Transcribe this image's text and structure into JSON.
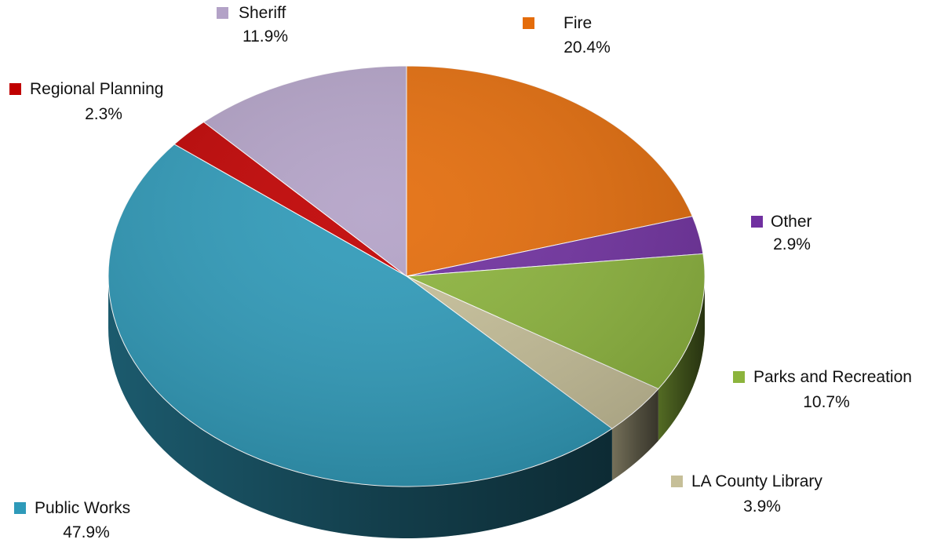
{
  "chart_data": {
    "type": "pie",
    "title": "",
    "slices": [
      {
        "label": "Fire",
        "value": 20.4,
        "display": "20.4%",
        "color": "#e46c0a"
      },
      {
        "label": "Other",
        "value": 2.9,
        "display": "2.9%",
        "color": "#7030a0"
      },
      {
        "label": "Parks and Recreation",
        "value": 10.7,
        "display": "10.7%",
        "color": "#8cb43c"
      },
      {
        "label": "LA County Library",
        "value": 3.9,
        "display": "3.9%",
        "color": "#c6bf98"
      },
      {
        "label": "Public Works",
        "value": 47.9,
        "display": "47.9%",
        "color": "#2e9ab9"
      },
      {
        "label": "Regional Planning",
        "value": 2.3,
        "display": "2.3%",
        "color": "#c00000"
      },
      {
        "label": "Sheriff",
        "value": 11.9,
        "display": "11.9%",
        "color": "#b3a2c7"
      }
    ],
    "legend": "labels next to slices",
    "style": "3d-tilted"
  }
}
